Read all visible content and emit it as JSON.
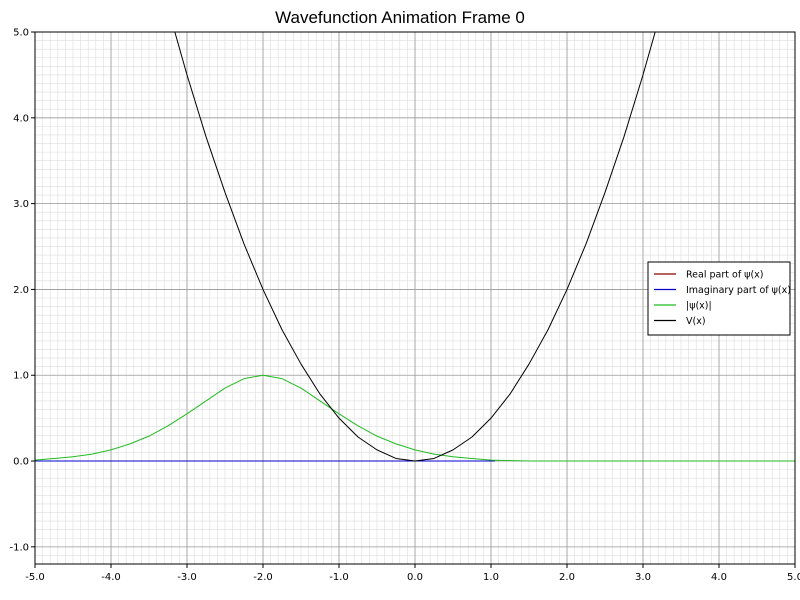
{
  "chart_data": {
    "type": "line",
    "title": "Wavefunction Animation Frame 0",
    "xlabel": "",
    "ylabel": "",
    "xlim": [
      -5.0,
      5.0
    ],
    "ylim": [
      -1.2,
      5.0
    ],
    "grid": true,
    "legend_position": "right",
    "x_ticks": [
      "-5.0",
      "-4.0",
      "-3.0",
      "-2.0",
      "-1.0",
      "0.0",
      "1.0",
      "2.0",
      "3.0",
      "4.0",
      "5.0"
    ],
    "y_ticks": [
      "-1.0",
      "0.0",
      "1.0",
      "2.0",
      "3.0",
      "4.0",
      "5.0"
    ],
    "series": [
      {
        "name": "Real part of ψ(x)",
        "color": "#8b0000",
        "x": [
          -5.0,
          1.05
        ],
        "y": [
          0.0,
          0.0
        ]
      },
      {
        "name": "Imaginary part of ψ(x)",
        "color": "#0000cc",
        "x": [
          -5.0,
          1.05
        ],
        "y": [
          0.0,
          0.0
        ]
      },
      {
        "name": "|ψ(x)|",
        "color": "#22bb22",
        "x": [
          -5.0,
          -4.75,
          -4.5,
          -4.25,
          -4.0,
          -3.75,
          -3.5,
          -3.25,
          -3.0,
          -2.75,
          -2.5,
          -2.25,
          -2.0,
          -1.75,
          -1.5,
          -1.25,
          -1.0,
          -0.75,
          -0.5,
          -0.25,
          0.0,
          0.25,
          0.5,
          0.75,
          1.0,
          1.5,
          2.0,
          3.0,
          4.0,
          5.0
        ],
        "y": [
          0.01,
          0.03,
          0.05,
          0.08,
          0.13,
          0.2,
          0.29,
          0.41,
          0.55,
          0.7,
          0.85,
          0.96,
          1.0,
          0.96,
          0.85,
          0.7,
          0.55,
          0.41,
          0.29,
          0.2,
          0.13,
          0.08,
          0.05,
          0.03,
          0.01,
          0.0,
          0.0,
          0.0,
          0.0,
          0.0
        ]
      },
      {
        "name": "V(x)",
        "color": "#000000",
        "x": [
          -3.16,
          -3.0,
          -2.75,
          -2.5,
          -2.25,
          -2.0,
          -1.75,
          -1.5,
          -1.25,
          -1.0,
          -0.75,
          -0.5,
          -0.25,
          0.0,
          0.25,
          0.5,
          0.75,
          1.0,
          1.25,
          1.5,
          1.75,
          2.0,
          2.25,
          2.5,
          2.75,
          3.0,
          3.16
        ],
        "y": [
          5.0,
          4.5,
          3.78,
          3.13,
          2.53,
          2.0,
          1.53,
          1.13,
          0.78,
          0.5,
          0.28,
          0.13,
          0.03,
          0.0,
          0.03,
          0.13,
          0.28,
          0.5,
          0.78,
          1.13,
          1.53,
          2.0,
          2.53,
          3.13,
          3.78,
          4.5,
          5.0
        ]
      }
    ]
  }
}
